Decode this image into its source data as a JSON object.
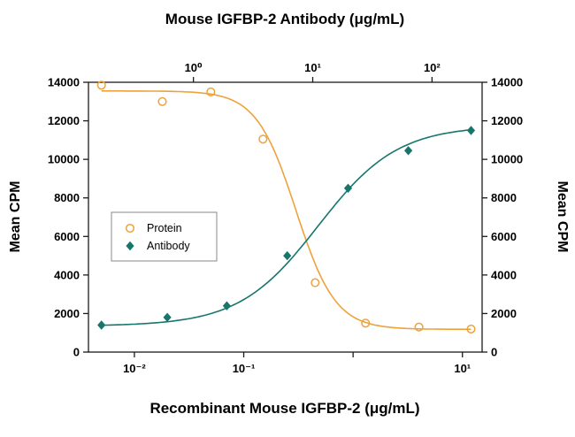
{
  "chart_data": {
    "type": "scatter",
    "title": "Mouse IGFBP-2 Antibody (μg/mL)",
    "x_axis_top": {
      "title": "Mouse IGFBP-2 Antibody (μg/mL)",
      "scale": "log",
      "log_min": -0.88,
      "log_max": 2.42,
      "ticks": [
        {
          "log": 0,
          "label": "10⁰"
        },
        {
          "log": 1,
          "label": "10¹"
        },
        {
          "log": 2,
          "label": "10²"
        }
      ]
    },
    "x_axis_bottom": {
      "title": "Recombinant Mouse IGFBP-2 (μg/mL)",
      "scale": "log",
      "log_min": -2.42,
      "log_max": 1.18,
      "ticks": [
        {
          "log": -2,
          "label": "10⁻²"
        },
        {
          "log": -1,
          "label": "10⁻¹"
        },
        {
          "log": 0,
          "label": ""
        },
        {
          "log": 1,
          "label": "10¹"
        }
      ]
    },
    "y_axis": {
      "title": "Mean CPM",
      "min": 0,
      "max": 14000,
      "tick_step": 2000,
      "tick_values": [
        0,
        2000,
        4000,
        6000,
        8000,
        10000,
        12000,
        14000
      ]
    },
    "y_axis_right_title": "Mean CPM",
    "legend": {
      "position": "middle-left",
      "items": [
        "Protein",
        "Antibody"
      ]
    },
    "series": [
      {
        "name": "Protein",
        "marker": "circle-open",
        "color": "#EEA23C",
        "points": [
          [
            0.005,
            13850
          ],
          [
            0.018,
            13000
          ],
          [
            0.05,
            13500
          ],
          [
            0.15,
            11050
          ],
          [
            0.45,
            3600
          ],
          [
            1.3,
            1500
          ],
          [
            4.0,
            1300
          ],
          [
            12,
            1200
          ]
        ],
        "fit": {
          "top": 13550,
          "bottom": 1180,
          "ec50": 0.3,
          "hill": 2.4,
          "direction": "decreasing"
        }
      },
      {
        "name": "Antibody",
        "marker": "diamond-filled",
        "color": "#17766C",
        "points": [
          [
            0.005,
            1400
          ],
          [
            0.02,
            1800
          ],
          [
            0.07,
            2400
          ],
          [
            0.25,
            5000
          ],
          [
            0.9,
            8500
          ],
          [
            3.2,
            10450
          ],
          [
            12,
            11500
          ]
        ],
        "fit": {
          "top": 11750,
          "bottom": 1350,
          "ec50": 0.48,
          "hill": 1.2,
          "direction": "increasing"
        }
      }
    ]
  }
}
